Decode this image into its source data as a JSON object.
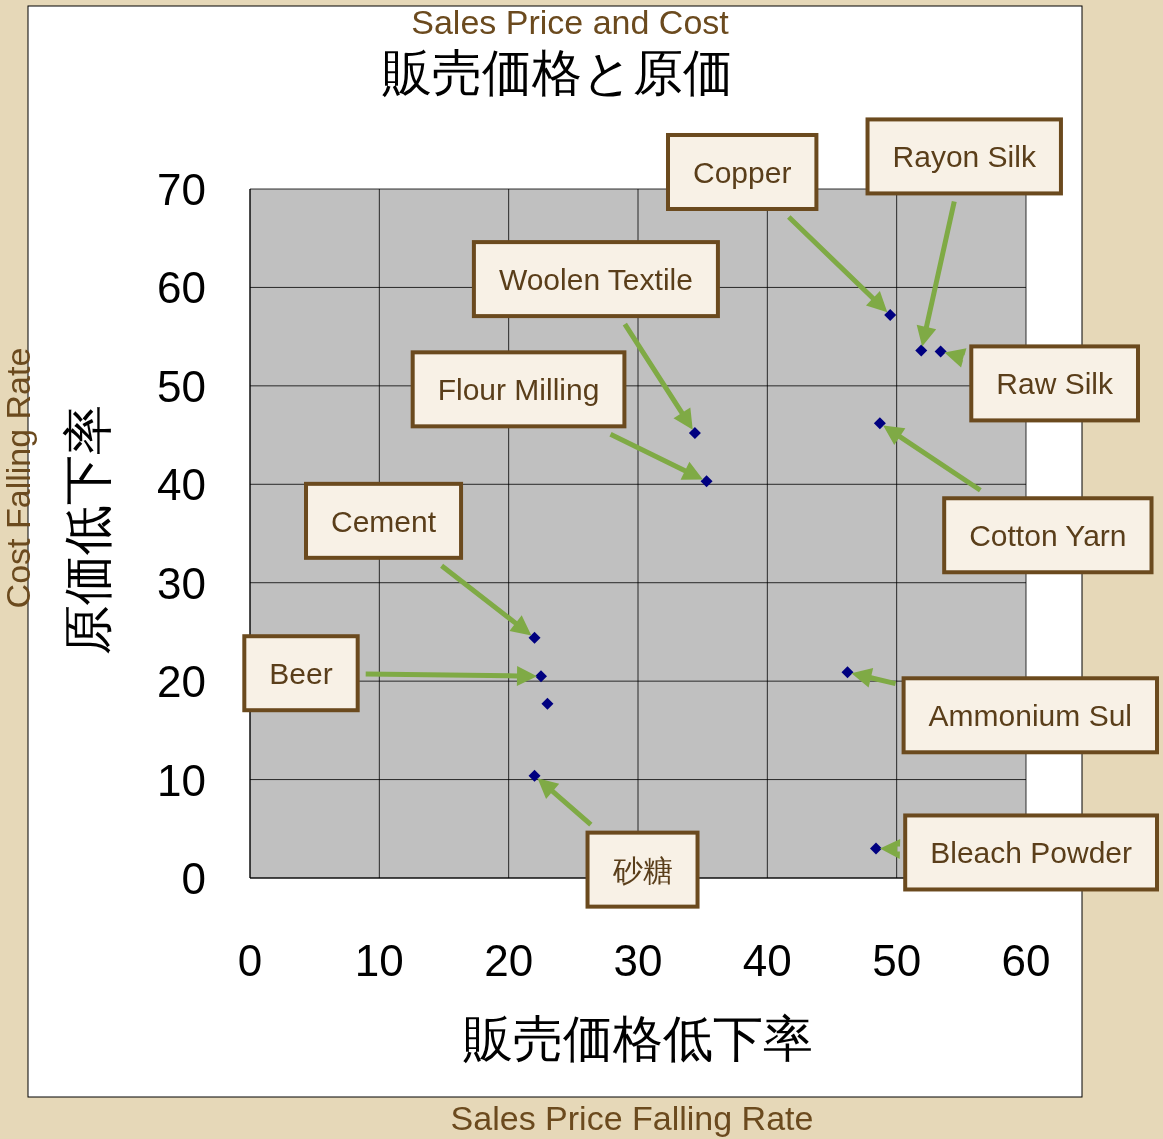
{
  "chart_data": {
    "type": "scatter",
    "title": "販売価格と原価",
    "subtitle": "Sales Price and Cost",
    "xlabel": "販売価格低下率",
    "ylabel": "原価低下率",
    "x": [
      49.5,
      51.9,
      53.4,
      48.7,
      34.4,
      35.3,
      22.0,
      22.5,
      23.0,
      22.0,
      46.2,
      48.4
    ],
    "series": [
      {
        "color": "#000080",
        "values": [
          57.2,
          53.6,
          53.5,
          46.2,
          45.2,
          40.3,
          24.4,
          20.5,
          17.7,
          10.4,
          20.9,
          3.0
        ]
      }
    ],
    "xlim": [
      0,
      60
    ],
    "xticks": [
      0,
      10,
      20,
      30,
      40,
      50,
      60
    ],
    "ylim": [
      0,
      70
    ],
    "yticks": [
      0,
      10,
      20,
      30,
      40,
      50,
      60,
      70
    ],
    "grid": true,
    "marker": "diamond",
    "annotations": [
      "Copper",
      "Rayon Silk",
      {
        "text": "Raw Silk",
        "x": 53.4,
        "y": 53.5
      },
      "Cotton Yarn",
      "Woolen Textile",
      "Flour Milling",
      "Cement",
      "Beer",
      "砂糖",
      {
        "text": "Ammonium Sul",
        "x": 46.2,
        "y": 20.9
      },
      {
        "text": "Bleach Powder",
        "x": 48.4,
        "y": 3.0
      },
      "Cost Falling Rate",
      "Sales Price Falling Rate"
    ]
  }
}
